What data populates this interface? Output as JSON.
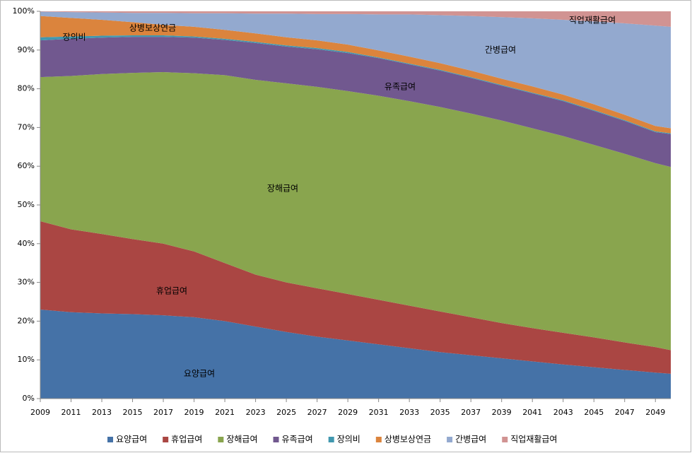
{
  "chart_data": {
    "type": "stacked_area_percent",
    "x": [
      2009,
      2011,
      2013,
      2015,
      2017,
      2019,
      2021,
      2023,
      2025,
      2027,
      2029,
      2031,
      2033,
      2035,
      2037,
      2039,
      2041,
      2043,
      2045,
      2047,
      2049,
      2050
    ],
    "xlim": [
      2009,
      2050
    ],
    "xticks": [
      2009,
      2011,
      2013,
      2015,
      2017,
      2019,
      2021,
      2023,
      2025,
      2027,
      2029,
      2031,
      2033,
      2035,
      2037,
      2039,
      2041,
      2043,
      2045,
      2047,
      2049
    ],
    "ylim": [
      0,
      100
    ],
    "yticks": [
      {
        "value": 0,
        "label": "0%"
      },
      {
        "value": 10,
        "label": "10%"
      },
      {
        "value": 20,
        "label": "20%"
      },
      {
        "value": 30,
        "label": "30%"
      },
      {
        "value": 40,
        "label": "40%"
      },
      {
        "value": 50,
        "label": "50%"
      },
      {
        "value": 60,
        "label": "60%"
      },
      {
        "value": 70,
        "label": "70%"
      },
      {
        "value": 80,
        "label": "80%"
      },
      {
        "value": 90,
        "label": "90%"
      },
      {
        "value": 100,
        "label": "100%"
      }
    ],
    "legend": "bottom",
    "series": [
      {
        "name": "요양급여",
        "color": "#4572A7",
        "values": [
          23,
          22.3,
          22,
          21.8,
          21.5,
          21,
          20,
          18.6,
          17.2,
          16,
          15,
          14,
          13,
          12,
          11.2,
          10.4,
          9.6,
          8.8,
          8.1,
          7.4,
          6.7,
          6.4
        ]
      },
      {
        "name": "휴업급여",
        "color": "#AA4643",
        "values": [
          22.8,
          21.4,
          20.5,
          19.4,
          18.5,
          17,
          15,
          13.4,
          12.8,
          12.5,
          12,
          11.5,
          11,
          10.5,
          9.8,
          9.1,
          8.6,
          8.2,
          7.7,
          7.1,
          6.6,
          6.1
        ]
      },
      {
        "name": "장해급여",
        "color": "#89A54E",
        "values": [
          37.2,
          39.6,
          41.3,
          42.9,
          44.3,
          46,
          48.5,
          50.3,
          51.4,
          52,
          52.4,
          52.7,
          52.8,
          52.8,
          52.6,
          52.3,
          51.6,
          50.8,
          49.7,
          48.7,
          47.5,
          47.3
        ]
      },
      {
        "name": "유족급여",
        "color": "#71588F",
        "values": [
          9.5,
          9.6,
          9.4,
          9.3,
          9.1,
          9.2,
          9.1,
          9.5,
          9.5,
          9.7,
          9.8,
          9.7,
          9.5,
          9.4,
          9.2,
          9,
          9,
          9,
          8.8,
          8.5,
          8,
          8.5
        ]
      },
      {
        "name": "장의비",
        "color": "#4198AF",
        "values": [
          0.8,
          0.6,
          0.5,
          0.4,
          0.4,
          0.3,
          0.3,
          0.3,
          0.3,
          0.3,
          0.3,
          0.2,
          0.2,
          0.2,
          0.2,
          0.2,
          0.2,
          0.2,
          0.2,
          0.2,
          0.2,
          0.2
        ]
      },
      {
        "name": "상병보상연금",
        "color": "#DB843D",
        "values": [
          5.5,
          4.8,
          4.1,
          3.4,
          2.7,
          2.5,
          2.3,
          2.2,
          2.1,
          2,
          1.9,
          1.8,
          1.8,
          1.7,
          1.7,
          1.6,
          1.6,
          1.5,
          1.5,
          1.4,
          1.4,
          1.3
        ]
      },
      {
        "name": "간병급여",
        "color": "#93A9CF",
        "values": [
          1.1,
          1.5,
          1.9,
          2.4,
          3.1,
          3.5,
          4.3,
          5.1,
          6.1,
          6.8,
          7.9,
          9.3,
          10.9,
          12.4,
          14.1,
          15.9,
          17.6,
          19.3,
          21.4,
          23.6,
          25.9,
          26.2
        ]
      },
      {
        "name": "직업재활급여",
        "color": "#D19392",
        "values": [
          0.1,
          0.2,
          0.3,
          0.4,
          0.4,
          0.5,
          0.5,
          0.6,
          0.6,
          0.7,
          0.7,
          0.8,
          0.8,
          1,
          1.2,
          1.5,
          1.8,
          2.2,
          2.6,
          3.1,
          3.7,
          4
        ]
      }
    ]
  }
}
